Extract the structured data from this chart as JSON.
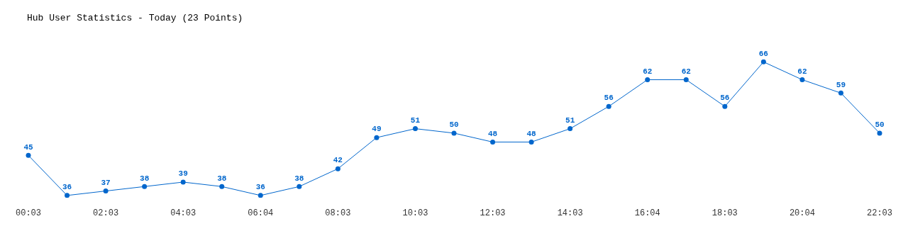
{
  "chart_data": {
    "type": "line",
    "title": "Hub User Statistics - Today (23 Points)",
    "categories": [
      "00:03",
      null,
      "02:03",
      null,
      "04:03",
      null,
      "06:04",
      null,
      "08:03",
      null,
      "10:03",
      null,
      "12:03",
      null,
      "14:03",
      null,
      "16:04",
      null,
      "18:03",
      null,
      "20:04",
      null,
      "22:03"
    ],
    "series": [
      {
        "color": "#0066cc",
        "values": [
          45,
          36,
          37,
          38,
          39,
          38,
          36,
          38,
          42,
          49,
          51,
          50,
          48,
          48,
          51,
          56,
          62,
          62,
          56,
          66,
          62,
          59,
          50
        ]
      }
    ],
    "tick_labels": "x",
    "data_labels": true,
    "grid": false,
    "legend": false,
    "marker": "circle",
    "line_style": "solid"
  }
}
